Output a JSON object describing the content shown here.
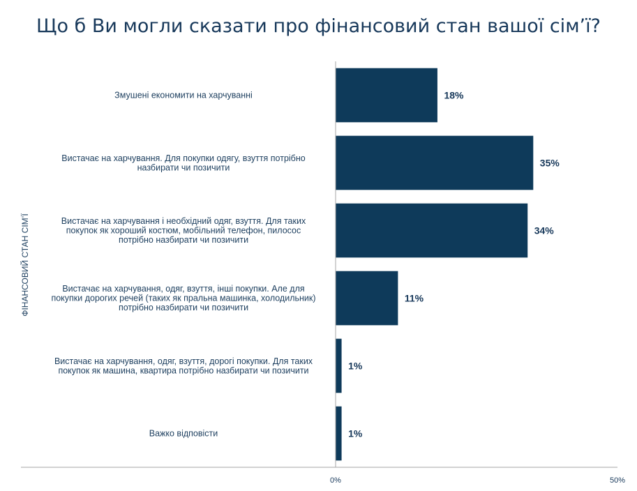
{
  "title": "Що б Ви могли сказати про фінансовий стан вашої сім’ї?",
  "colors": {
    "bar": "#0e3a5a",
    "axis": "#a6a6a6",
    "title": "#17385a"
  },
  "chart_data": {
    "type": "bar",
    "orientation": "horizontal",
    "title": "Що б Ви могли сказати про фінансовий стан вашої сім’ї?",
    "ylabel": "ФІНАНСОВИЙ СТАН СІМ’Ї",
    "xlabel": "",
    "xlim": [
      0,
      50
    ],
    "x_ticks": [
      "0%",
      "50%"
    ],
    "grid": false,
    "categories": [
      [
        "Змушені економити на харчуванні"
      ],
      [
        "Вистачає на харчування. Для покупки одягу, взуття потрібно",
        "назбирати чи позичити"
      ],
      [
        "Вистачає на харчування і необхідний одяг, взуття. Для таких",
        "покупок як хороший костюм, мобільний телефон, пилосос",
        "потрібно назбирати чи позичити"
      ],
      [
        "Вистачає на харчування, одяг, взуття, інші покупки. Але для",
        "покупки дорогих речей (таких як пральна машинка, холодильник)",
        "потрібно назбирати чи позичити"
      ],
      [
        "Вистачає на харчування, одяг, взуття, дорогі покупки. Для таких",
        "покупок як машина, квартира потрібно назбирати чи позичити"
      ],
      [
        "Важко відповісти"
      ]
    ],
    "values": [
      18,
      35,
      34,
      11,
      1,
      1
    ],
    "data_labels": [
      "18%",
      "35%",
      "34%",
      "11%",
      "1%",
      "1%"
    ]
  }
}
